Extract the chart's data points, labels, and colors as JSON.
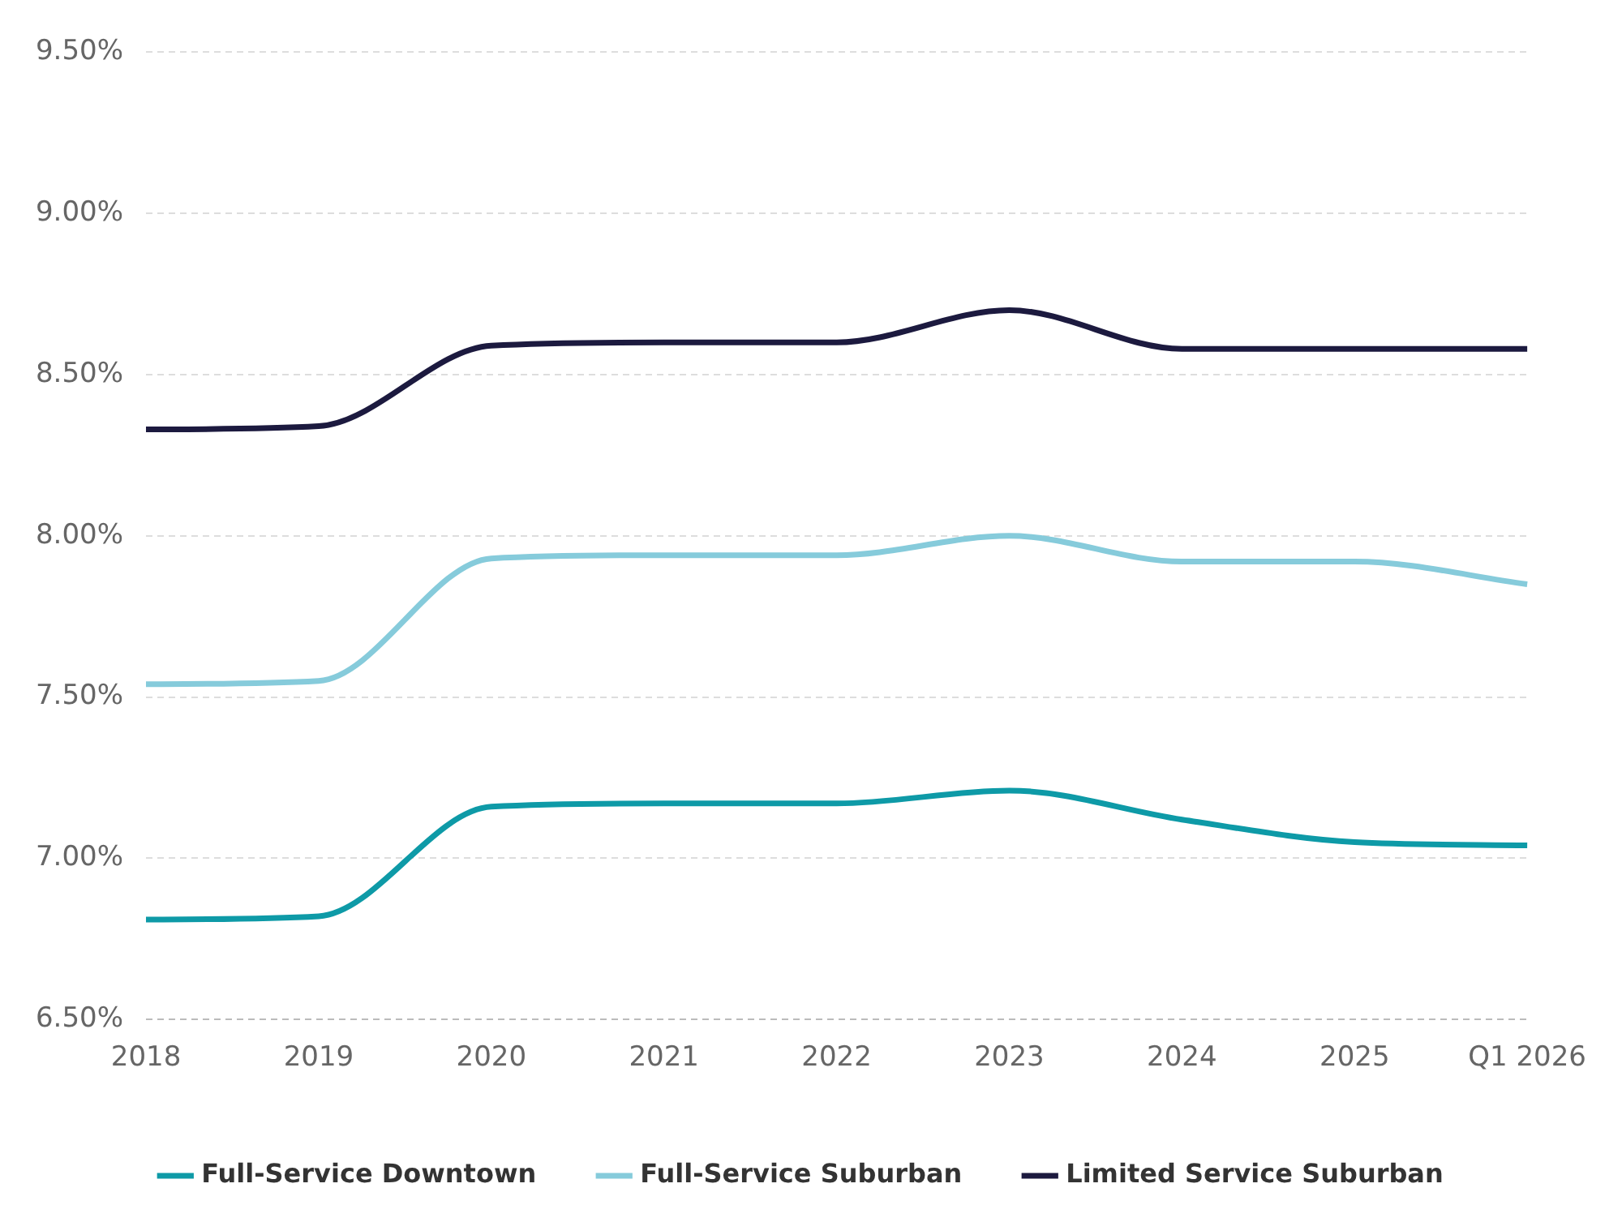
{
  "chart_data": {
    "type": "line",
    "categories": [
      "2018",
      "2019",
      "2020",
      "2021",
      "2022",
      "2023",
      "2024",
      "2025",
      "Q1 2026"
    ],
    "series": [
      {
        "name": "Full-Service Downtown",
        "color": "#0e9aa7",
        "values": [
          6.81,
          6.82,
          7.16,
          7.17,
          7.17,
          7.21,
          7.12,
          7.05,
          7.04
        ]
      },
      {
        "name": "Full-Service Suburban",
        "color": "#86cbdb",
        "values": [
          7.54,
          7.55,
          7.93,
          7.94,
          7.94,
          8.0,
          7.92,
          7.92,
          7.85
        ]
      },
      {
        "name": "Limited Service Suburban",
        "color": "#1c1a3f",
        "values": [
          8.33,
          8.34,
          8.59,
          8.6,
          8.6,
          8.7,
          8.58,
          8.58,
          8.58
        ]
      }
    ],
    "ylim": [
      6.5,
      9.5
    ],
    "yticks": [
      {
        "value": 6.5,
        "label": "6.50%"
      },
      {
        "value": 7,
        "label": "7.00%"
      },
      {
        "value": 7.5,
        "label": "7.50%"
      },
      {
        "value": 8,
        "label": "8.00%"
      },
      {
        "value": 8.5,
        "label": "8.50%"
      },
      {
        "value": 9,
        "label": "9.00%"
      },
      {
        "value": 9.5,
        "label": "9.50%"
      }
    ],
    "grid": "y",
    "legend": "bottom",
    "marker": "none",
    "line_style": "solid"
  }
}
